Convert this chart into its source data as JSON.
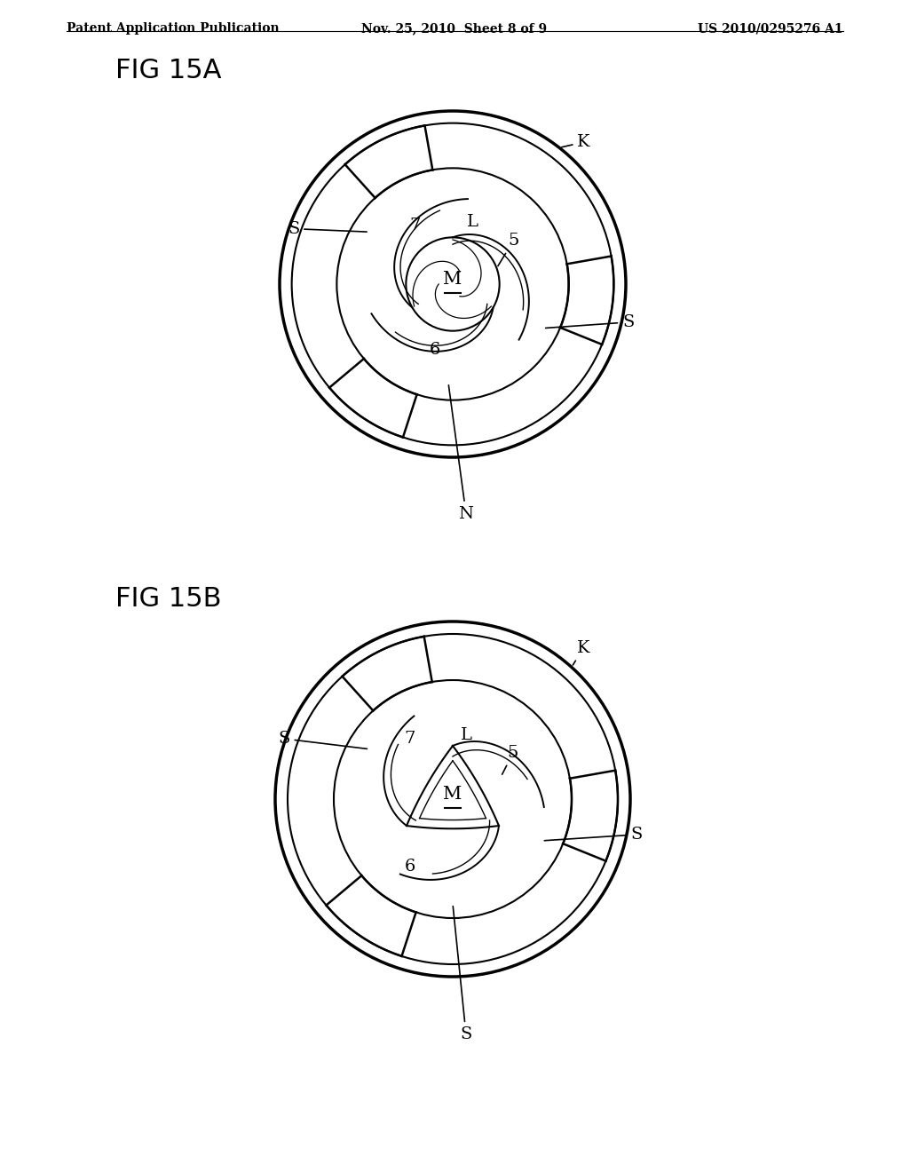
{
  "bg_color": "#ffffff",
  "line_color": "#000000",
  "header_left": "Patent Application Publication",
  "header_mid": "Nov. 25, 2010  Sheet 8 of 9",
  "header_right": "US 2010/0295276 A1",
  "fig_a_label": "FIG 15A",
  "fig_b_label": "FIG 15B",
  "header_fontsize": 10,
  "fig_label_fontsize": 22,
  "annotation_fontsize": 14,
  "lw_outer": 2.5,
  "lw_inner": 1.5,
  "lw_spoke": 1.8
}
